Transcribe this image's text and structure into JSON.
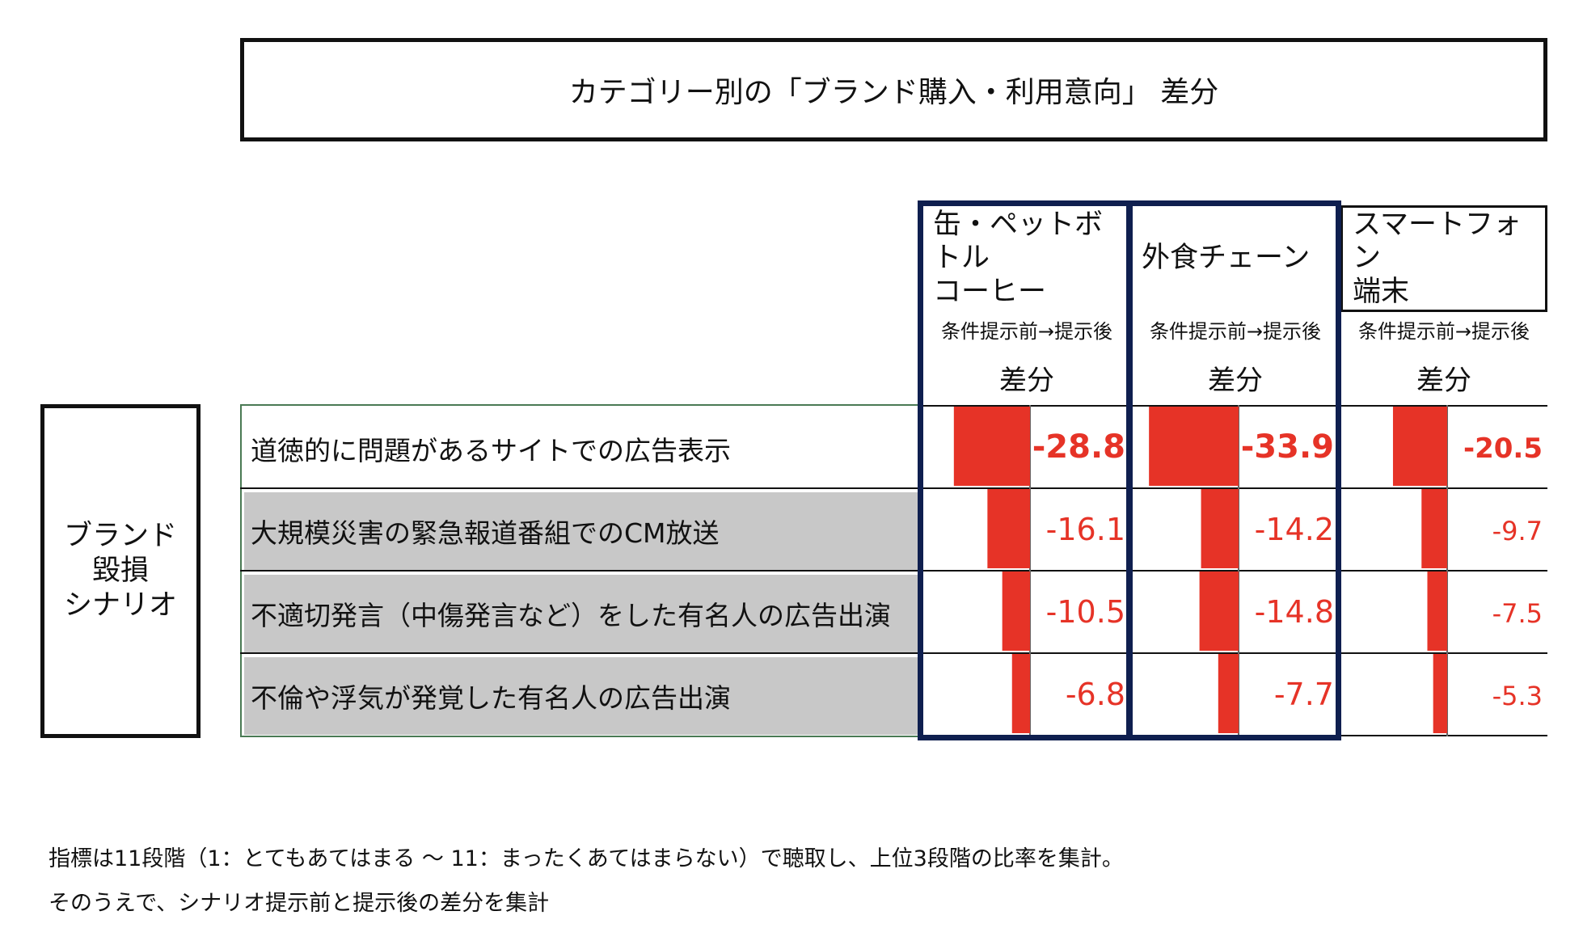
{
  "title": "カテゴリー別の「ブランド購入・利用意向」 差分",
  "header": {
    "sub_label": "条件提示前→提示後",
    "diff_label": "差分"
  },
  "group_label_lines": [
    "ブランド",
    "毀損",
    "シナリオ"
  ],
  "colors": {
    "bar": "#e63327",
    "value_text": "#e63327",
    "highlight_border": "#0f1f4f",
    "shaded_row": "#c8c8c8"
  },
  "chart_data": {
    "type": "bar",
    "orientation": "horizontal",
    "title": "カテゴリー別の「ブランド購入・利用意向」 差分",
    "categories": [
      "道徳的に問題があるサイトでの広告表示",
      "大規模災害の緊急報道番組でのCM放送",
      "不適切発言（中傷発言など）をした有名人の広告出演",
      "不倫や浮気が発覚した有名人の広告出演"
    ],
    "series": [
      {
        "name_lines": [
          "缶・ペットボトル",
          "コーヒー"
        ],
        "values": [
          -28.8,
          -16.1,
          -10.5,
          -6.8
        ],
        "labels": [
          "-28.8",
          "-16.1",
          "-10.5",
          "-6.8"
        ],
        "highlighted": true
      },
      {
        "name_lines": [
          "外食チェーン"
        ],
        "values": [
          -33.9,
          -14.2,
          -14.8,
          -7.7
        ],
        "labels": [
          "-33.9",
          "-14.2",
          "-14.8",
          "-7.7"
        ],
        "highlighted": true
      },
      {
        "name_lines": [
          "スマートフォン",
          "端末"
        ],
        "values": [
          -20.5,
          -9.7,
          -7.5,
          -5.3
        ],
        "labels": [
          "-20.5",
          "-9.7",
          "-7.5",
          "-5.3"
        ],
        "highlighted": false
      }
    ],
    "bold_first_row": true
  },
  "footnotes": [
    "指標は11段階（1：とてもあてはまる 〜 11：まったくあてはまらない）で聴取し、上位3段階の比率を集計。",
    "そのうえで、シナリオ提示前と提示後の差分を集計"
  ]
}
